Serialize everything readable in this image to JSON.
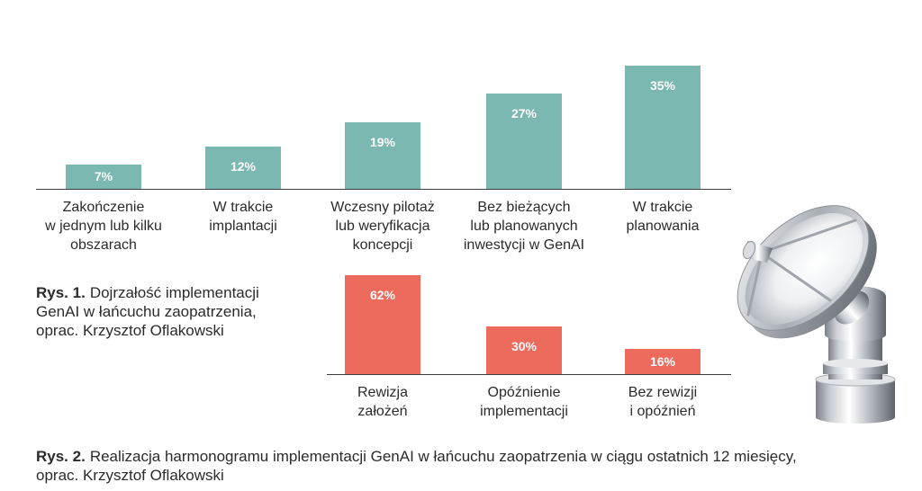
{
  "chart_data": [
    {
      "type": "bar",
      "figure_label": "Rys. 1.",
      "title": "Dojrzałość implementacji\nGenAI w łańcuchu zaopatrzenia,\noprac. Krzysztof Oflakowski",
      "categories": [
        "Zakończenie\nw jednym lub kilku\nobszarach",
        "W trakcie\nimplantacji",
        "Wczesny pilotaż\nlub weryfikacja\nkoncepcji",
        "Bez bieżących\nlub planowanych\ninwestycji w GenAI",
        "W trakcie\nplanowania"
      ],
      "values": [
        7,
        12,
        19,
        27,
        35
      ],
      "data_labels": [
        "7%",
        "12%",
        "19%",
        "27%",
        "35%"
      ],
      "color": "#7ab8b1",
      "grid": false
    },
    {
      "type": "bar",
      "figure_label": "Rys. 2.",
      "title": "Realizacja harmonogramu implementacji GenAI w łańcuchu zaopatrzenia w ciągu ostatnich 12 miesięcy,\noprac. Krzysztof Oflakowski",
      "categories": [
        "Rewizja\nzałożeń",
        "Opóźnienie\nimplementacji",
        "Bez rewizji\ni opóźnień"
      ],
      "values": [
        62,
        30,
        16
      ],
      "data_labels": [
        "62%",
        "30%",
        "16%"
      ],
      "color": "#ec6b5d",
      "grid": false
    }
  ]
}
